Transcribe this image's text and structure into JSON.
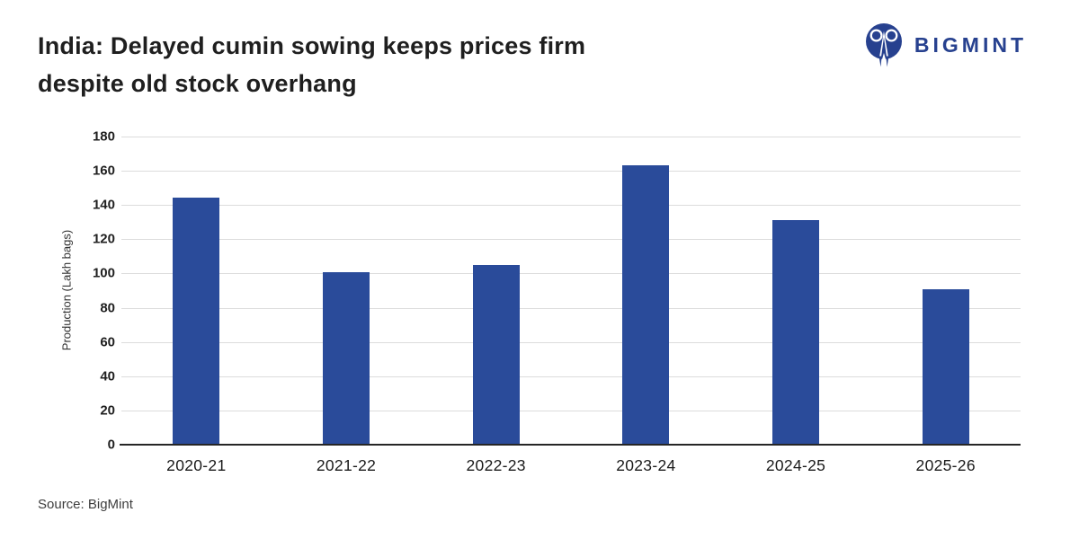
{
  "header": {
    "title_line1": "India: Delayed cumin sowing keeps prices firm",
    "title_line2": "despite old stock overhang",
    "brand": {
      "name": "BIGMINT",
      "logo_icon": "bigmint-logo-icon",
      "color": "#27418f"
    }
  },
  "chart_data": {
    "type": "bar",
    "title": "India: Delayed cumin sowing keeps prices firm despite old stock overhang",
    "categories": [
      "2020-21",
      "2021-22",
      "2022-23",
      "2023-24",
      "2024-25",
      "2025-26"
    ],
    "values": [
      144.5,
      101,
      105,
      163,
      131,
      91
    ],
    "xlabel": "",
    "ylabel": "Production (Lakh bags)",
    "ylim": [
      0,
      180
    ],
    "ytick_step": 20,
    "grid": true,
    "legend": false,
    "bar_color": "#2a4b9a",
    "gridline_color": "#dcdcdc",
    "axis_color": "#262626"
  },
  "footer": {
    "source": "Source: BigMint"
  }
}
